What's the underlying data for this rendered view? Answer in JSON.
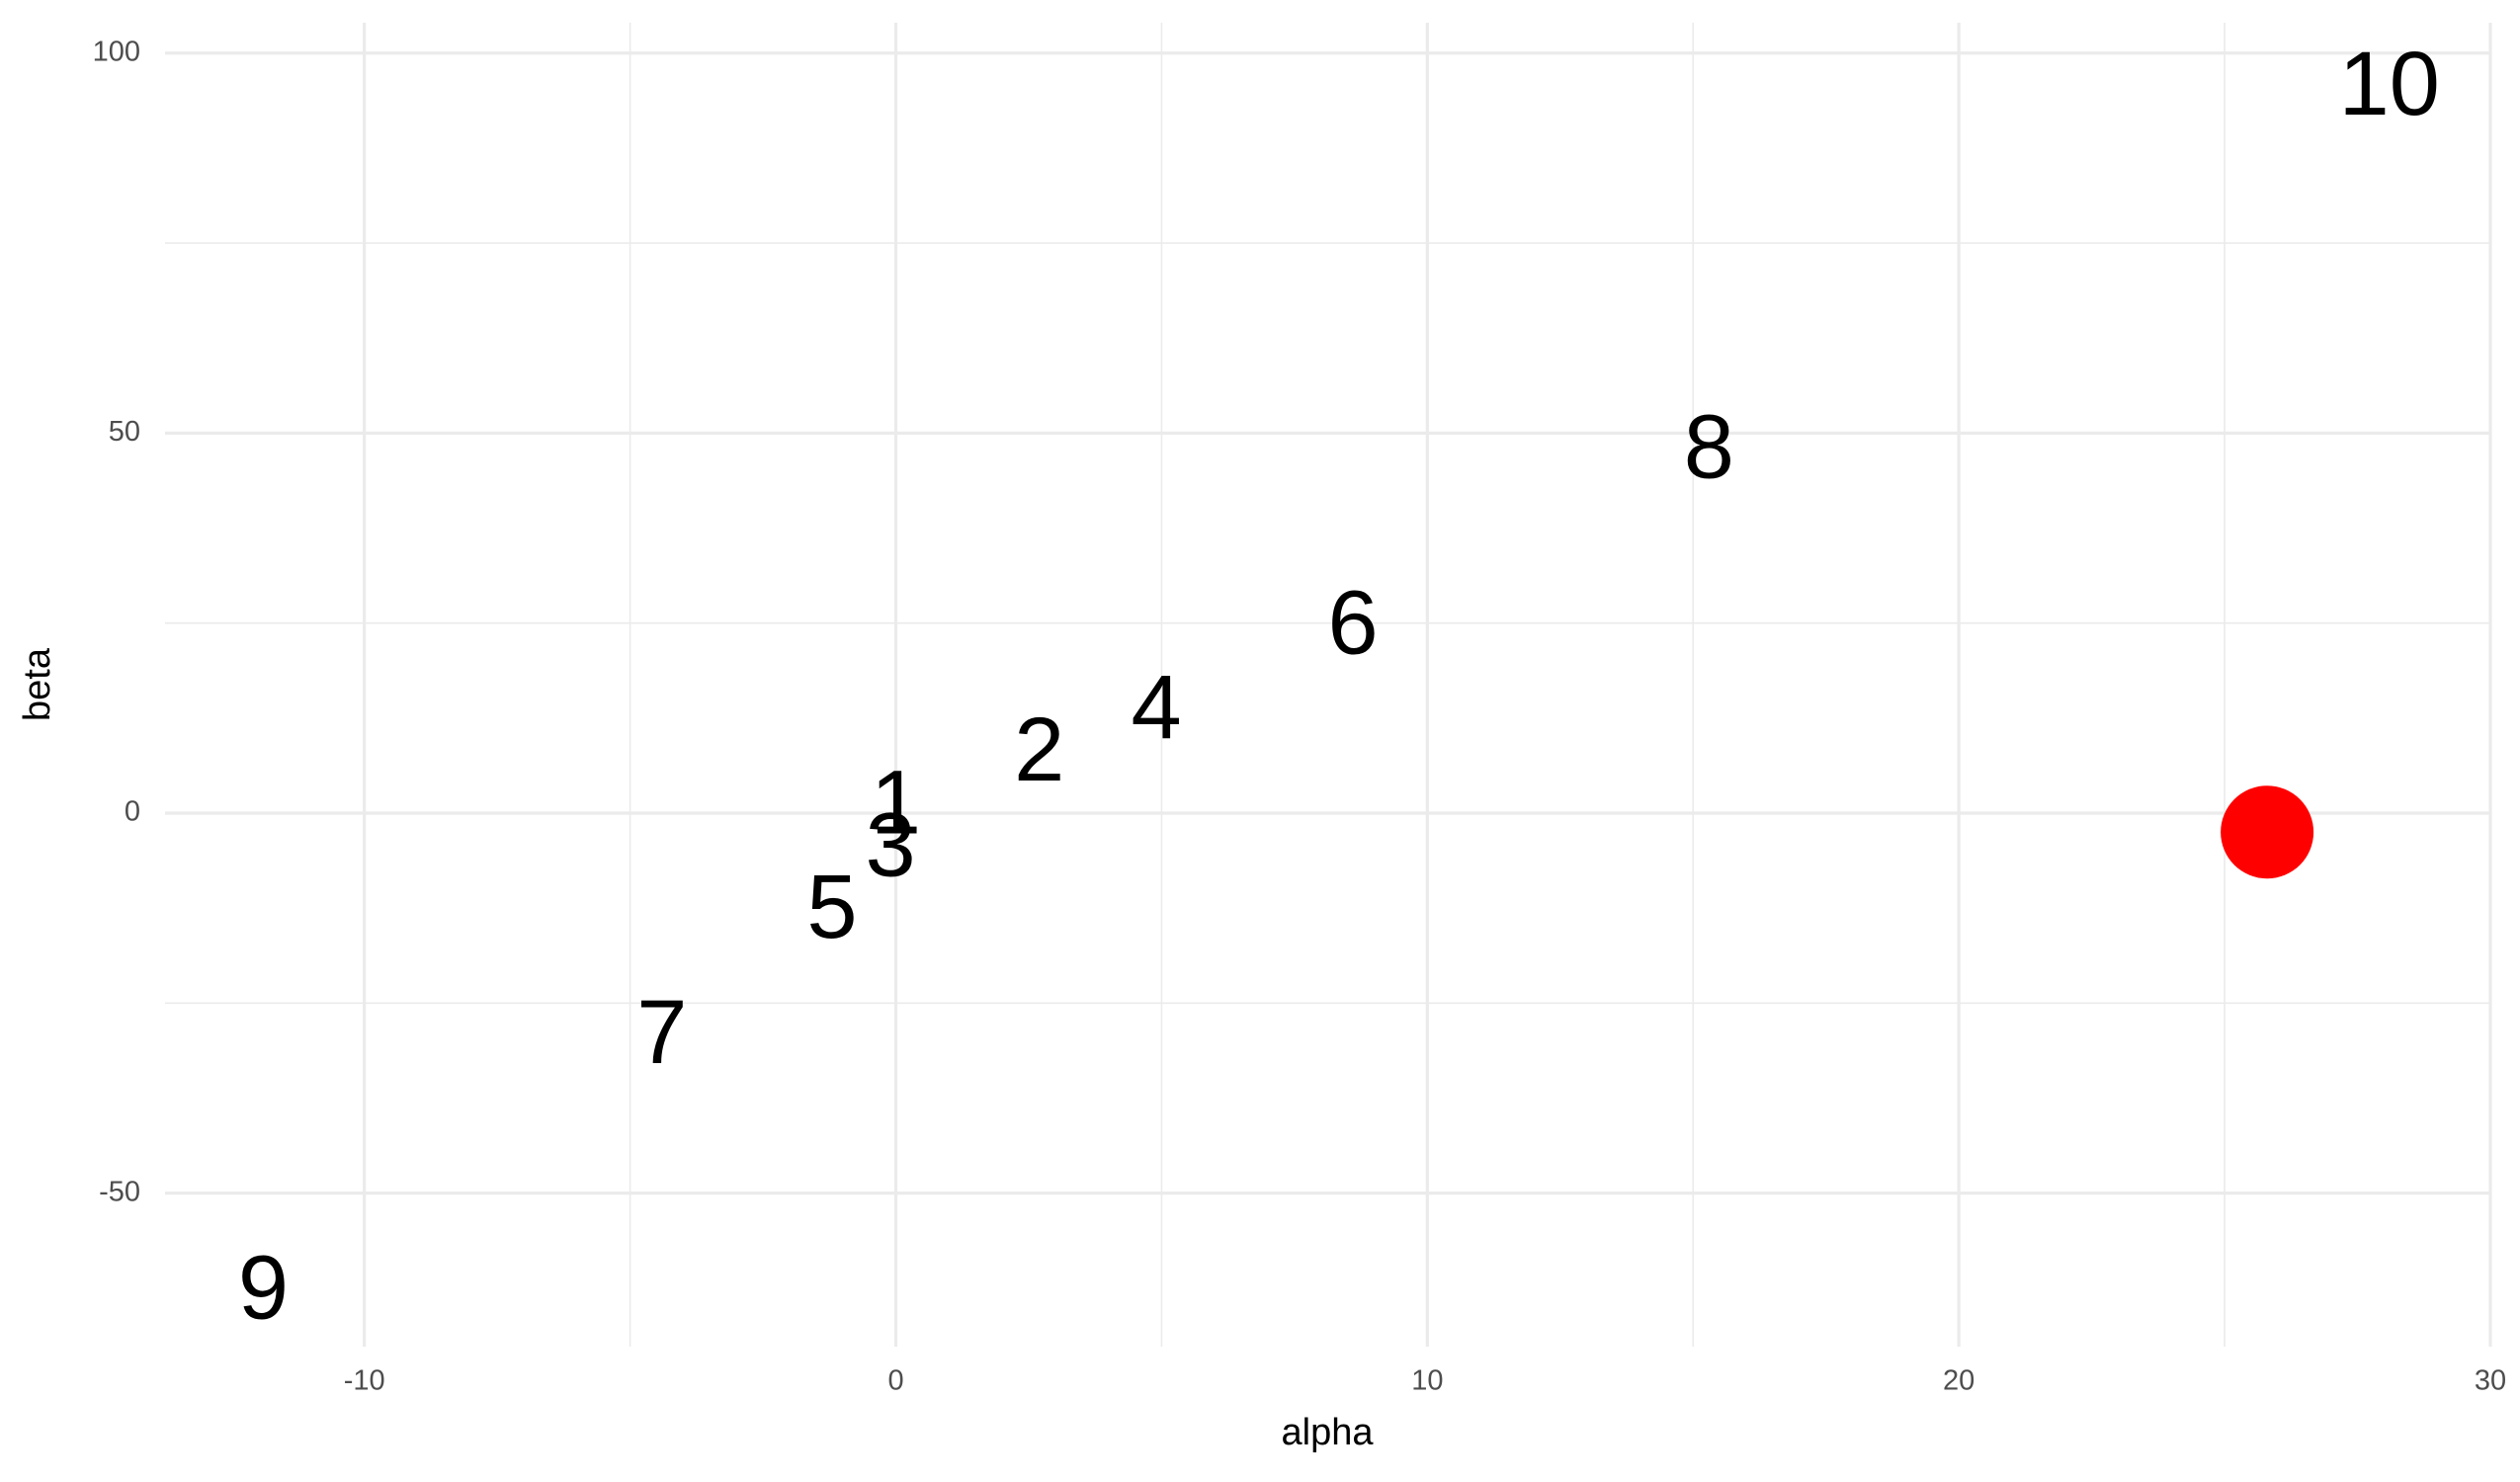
{
  "chart_data": {
    "type": "scatter",
    "x_label": "alpha",
    "y_label": "beta",
    "xlim": [
      -13.75,
      30
    ],
    "ylim": [
      -70.2,
      104
    ],
    "xticks": [
      -10,
      0,
      10,
      20,
      30
    ],
    "yticks": [
      -50,
      0,
      50,
      100
    ],
    "minor_xticks": [
      -5,
      5,
      15,
      25
    ],
    "minor_yticks": [
      -25,
      25,
      75
    ],
    "grid": true,
    "series": [
      {
        "color": "#000000",
        "labels": [
          "1",
          "2",
          "3",
          "4",
          "5",
          "6",
          "7",
          "8",
          "9",
          "10"
        ],
        "x": [
          0,
          2.7,
          -0.1,
          4.9,
          -1.2,
          8.6,
          -4.4,
          15.3,
          -11.9,
          28.1
        ],
        "values": [
          1,
          8,
          -4.6,
          13.5,
          -12.7,
          24.7,
          -29.2,
          47.8,
          -62.8,
          95.6
        ]
      },
      {
        "color": "#ff0000",
        "x": [
          25.8
        ],
        "values": [
          -2.5
        ]
      }
    ]
  }
}
